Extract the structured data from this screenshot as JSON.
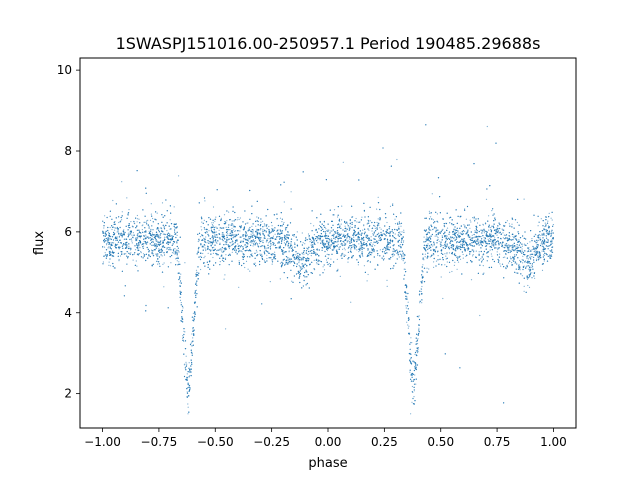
{
  "chart_data": {
    "type": "scatter",
    "title": "1SWASPJ151016.00-250957.1 Period 190485.29688s",
    "xlabel": "phase",
    "ylabel": "flux",
    "xlim": [
      -1.1,
      1.1
    ],
    "ylim": [
      1.15,
      10.3
    ],
    "xticks": [
      -1.0,
      -0.75,
      -0.5,
      -0.25,
      0.0,
      0.25,
      0.5,
      0.75,
      1.0
    ],
    "xtick_labels": [
      "−1.00",
      "−0.75",
      "−0.50",
      "−0.25",
      "0.00",
      "0.25",
      "0.50",
      "0.75",
      "1.00"
    ],
    "yticks": [
      2,
      4,
      6,
      8,
      10
    ],
    "ytick_labels": [
      "2",
      "4",
      "6",
      "8",
      "10"
    ],
    "grid": false,
    "legend": "none",
    "marker_color": "#1f77b4",
    "light_curve": {
      "phase_range": [
        -1.0,
        1.0
      ],
      "baseline_flux": 5.8,
      "primary_eclipses": [
        {
          "phase": -0.62,
          "min_flux": 1.9
        },
        {
          "phase": 0.38,
          "min_flux": 1.9
        }
      ],
      "secondary_eclipses": [
        {
          "phase": -0.12,
          "min_flux": 5.2
        },
        {
          "phase": 0.88,
          "min_flux": 5.2
        }
      ]
    }
  }
}
